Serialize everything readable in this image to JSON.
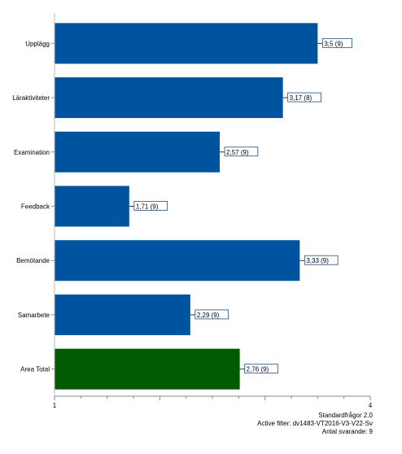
{
  "chart_data": {
    "type": "bar",
    "orientation": "horizontal",
    "categories": [
      "Upplägg",
      "Läraktiviteter",
      "Examination",
      "Feedback",
      "Bemötande",
      "Samarbete",
      "Area Total"
    ],
    "values": [
      3.5,
      3.17,
      2.57,
      1.71,
      3.33,
      2.29,
      2.76
    ],
    "data_labels": [
      "3,5 (9)",
      "3,17 (8)",
      "2,57 (9)",
      "1,71 (9)",
      "3,33 (9)",
      "2,29 (9)",
      "2,76 (9)"
    ],
    "bar_colors": [
      "#00539f",
      "#00539f",
      "#00539f",
      "#00539f",
      "#00539f",
      "#00539f",
      "#005a00"
    ],
    "xlim": [
      1,
      4
    ],
    "x_ticks": [
      1,
      4
    ],
    "grid": false
  },
  "footer": {
    "line1": "Standardfrågor 2.0",
    "line2": "Active filter: dv1483-VT2016-V3-V22-Sv",
    "line3": "Antal svarande: 9"
  }
}
